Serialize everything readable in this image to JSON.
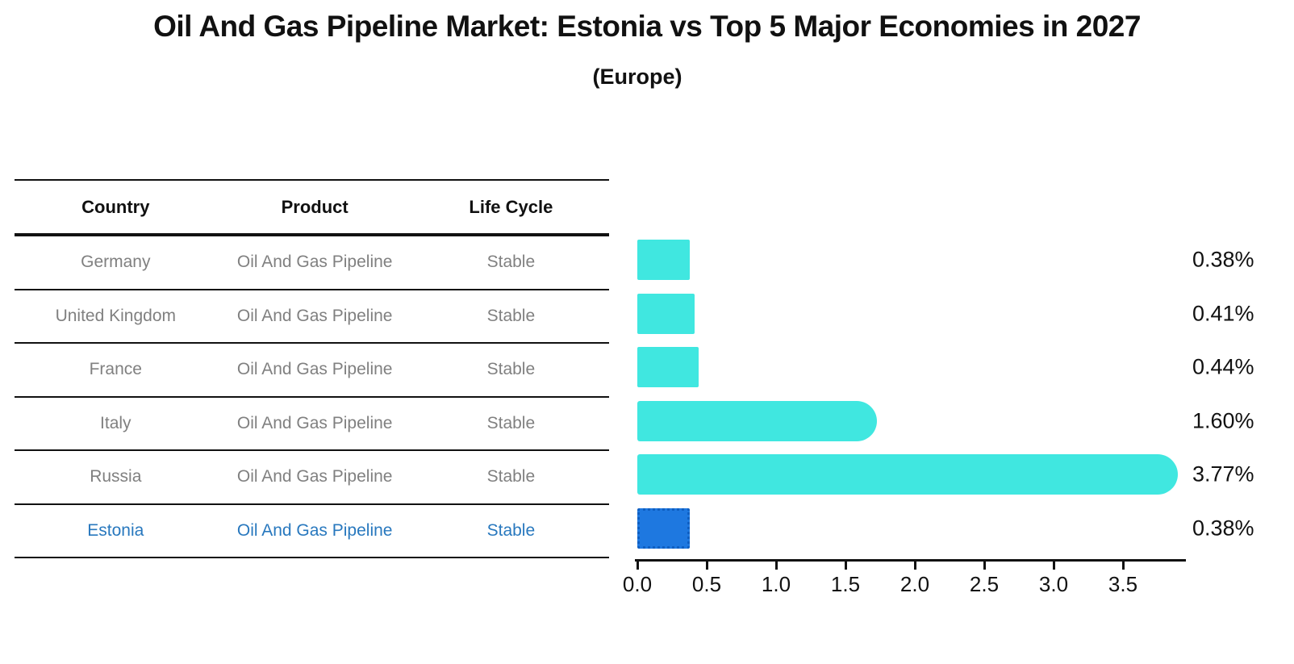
{
  "title": "Oil And Gas Pipeline Market: Estonia vs Top 5 Major Economies in 2027",
  "subtitle": "(Europe)",
  "table": {
    "columns": [
      "Country",
      "Product",
      "Life Cycle"
    ],
    "rows": [
      {
        "country": "Germany",
        "product": "Oil And Gas Pipeline",
        "life_cycle": "Stable",
        "highlight": false
      },
      {
        "country": "United Kingdom",
        "product": "Oil And Gas Pipeline",
        "life_cycle": "Stable",
        "highlight": false
      },
      {
        "country": "France",
        "product": "Oil And Gas Pipeline",
        "life_cycle": "Stable",
        "highlight": false
      },
      {
        "country": "Italy",
        "product": "Oil And Gas Pipeline",
        "life_cycle": "Stable",
        "highlight": false
      },
      {
        "country": "Russia",
        "product": "Oil And Gas Pipeline",
        "life_cycle": "Stable",
        "highlight": false
      },
      {
        "country": "Estonia",
        "product": "Oil And Gas Pipeline",
        "life_cycle": "Stable",
        "highlight": true
      }
    ]
  },
  "chart_data": {
    "type": "bar",
    "orientation": "horizontal",
    "categories": [
      "Germany",
      "United Kingdom",
      "France",
      "Italy",
      "Russia",
      "Estonia"
    ],
    "values": [
      0.38,
      0.41,
      0.44,
      1.6,
      3.77,
      0.38
    ],
    "labels": [
      "0.38%",
      "0.41%",
      "0.44%",
      "1.60%",
      "3.77%",
      "0.38%"
    ],
    "highlight_index": 5,
    "xlim": [
      0.0,
      3.95
    ],
    "x_ticks": [
      "0.0",
      "0.5",
      "1.0",
      "1.5",
      "2.0",
      "2.5",
      "3.0",
      "3.5"
    ],
    "grid": "off",
    "legend": "none",
    "title": "Oil And Gas Pipeline Market: Estonia vs Top 5 Major Economies in 2027 (Europe)",
    "xlabel": "",
    "ylabel": ""
  },
  "colors": {
    "bar": "#40E7E0",
    "highlight_bar": "#1E78E0",
    "highlight_border": "#0f5fc2",
    "highlight_text": "#2878BE",
    "row_text": "#808080",
    "header_text": "#111111",
    "axis": "#111111"
  }
}
